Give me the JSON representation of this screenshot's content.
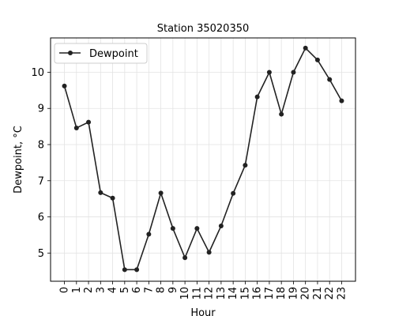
{
  "chart_data": {
    "type": "line",
    "title": "Station 35020350",
    "xlabel": "Hour",
    "ylabel": "Dewpoint, °C",
    "x": [
      0,
      1,
      2,
      3,
      4,
      5,
      6,
      7,
      8,
      9,
      10,
      11,
      12,
      13,
      14,
      15,
      16,
      17,
      18,
      19,
      20,
      21,
      22,
      23
    ],
    "x_tick_labels": [
      "0",
      "1",
      "2",
      "3",
      "4",
      "5",
      "6",
      "7",
      "8",
      "9",
      "10",
      "11",
      "12",
      "13",
      "14",
      "15",
      "16",
      "17",
      "18",
      "19",
      "20",
      "21",
      "22",
      "23"
    ],
    "y_ticks": [
      5,
      6,
      7,
      8,
      9,
      10
    ],
    "y_tick_labels": [
      "5",
      "6",
      "7",
      "8",
      "9",
      "10"
    ],
    "xlim": [
      -1.15,
      24.15
    ],
    "ylim": [
      4.22,
      10.95
    ],
    "grid": true,
    "legend_position": "upper-left",
    "series": [
      {
        "name": "Dewpoint",
        "color": "#222222",
        "marker": "circle",
        "values": [
          9.62,
          8.46,
          8.62,
          6.67,
          6.52,
          4.54,
          4.54,
          5.52,
          6.66,
          5.68,
          4.87,
          5.68,
          5.02,
          5.75,
          6.65,
          7.43,
          9.32,
          10.0,
          8.84,
          10.0,
          10.67,
          10.34,
          9.8,
          9.21
        ]
      }
    ]
  }
}
